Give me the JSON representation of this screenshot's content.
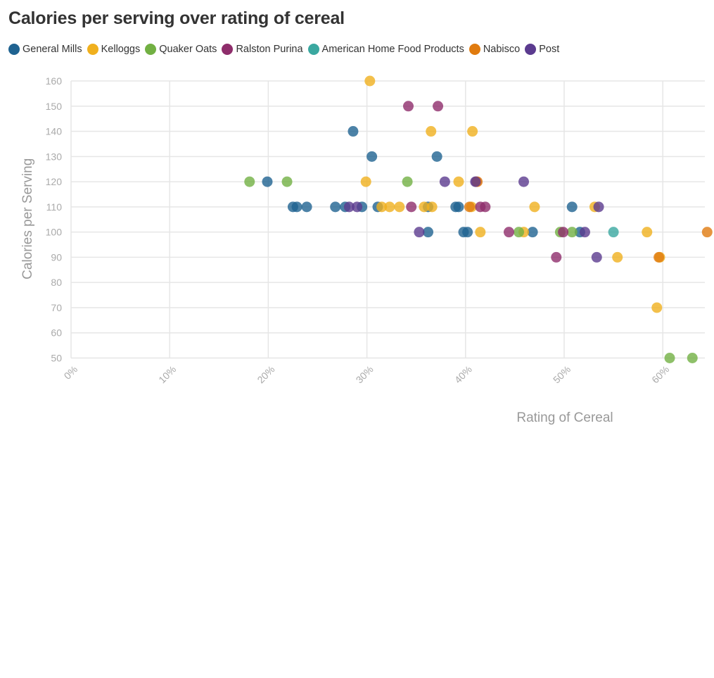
{
  "chart_data": {
    "type": "scatter",
    "title": "Calories per serving over rating of cereal",
    "xlabel": "Rating of Cereal",
    "ylabel": "Calories per Serving",
    "xlim": [
      0,
      0.64
    ],
    "ylim": [
      50,
      160
    ],
    "x_ticks": [
      "0%",
      "10%",
      "20%",
      "30%",
      "40%",
      "50%",
      "60%"
    ],
    "y_ticks": [
      "50",
      "60",
      "70",
      "80",
      "90",
      "100",
      "110",
      "120",
      "130",
      "140",
      "150",
      "160"
    ],
    "grid": true,
    "legend_position": "top-left",
    "series": [
      {
        "name": "General Mills",
        "color": "#1f6391",
        "points": [
          {
            "x": 0.199,
            "y": 120
          },
          {
            "x": 0.225,
            "y": 110
          },
          {
            "x": 0.229,
            "y": 110
          },
          {
            "x": 0.239,
            "y": 110
          },
          {
            "x": 0.268,
            "y": 110
          },
          {
            "x": 0.278,
            "y": 110
          },
          {
            "x": 0.286,
            "y": 140
          },
          {
            "x": 0.295,
            "y": 110
          },
          {
            "x": 0.305,
            "y": 130
          },
          {
            "x": 0.311,
            "y": 110
          },
          {
            "x": 0.362,
            "y": 100
          },
          {
            "x": 0.362,
            "y": 110
          },
          {
            "x": 0.371,
            "y": 130
          },
          {
            "x": 0.39,
            "y": 110
          },
          {
            "x": 0.393,
            "y": 110
          },
          {
            "x": 0.398,
            "y": 100
          },
          {
            "x": 0.402,
            "y": 100
          },
          {
            "x": 0.468,
            "y": 100
          },
          {
            "x": 0.508,
            "y": 110
          },
          {
            "x": 0.516,
            "y": 100
          }
        ]
      },
      {
        "name": "Kelloggs",
        "color": "#f0b01e",
        "points": [
          {
            "x": 0.299,
            "y": 120
          },
          {
            "x": 0.303,
            "y": 160
          },
          {
            "x": 0.315,
            "y": 110
          },
          {
            "x": 0.323,
            "y": 110
          },
          {
            "x": 0.333,
            "y": 110
          },
          {
            "x": 0.358,
            "y": 110
          },
          {
            "x": 0.365,
            "y": 140
          },
          {
            "x": 0.366,
            "y": 110
          },
          {
            "x": 0.393,
            "y": 120
          },
          {
            "x": 0.406,
            "y": 110
          },
          {
            "x": 0.407,
            "y": 140
          },
          {
            "x": 0.415,
            "y": 100
          },
          {
            "x": 0.459,
            "y": 100
          },
          {
            "x": 0.47,
            "y": 110
          },
          {
            "x": 0.531,
            "y": 110
          },
          {
            "x": 0.554,
            "y": 90
          },
          {
            "x": 0.584,
            "y": 100
          },
          {
            "x": 0.594,
            "y": 70
          },
          {
            "x": 0.597,
            "y": 90
          }
        ]
      },
      {
        "name": "Quaker Oats",
        "color": "#72b043",
        "points": [
          {
            "x": 0.181,
            "y": 120
          },
          {
            "x": 0.219,
            "y": 120
          },
          {
            "x": 0.341,
            "y": 120
          },
          {
            "x": 0.454,
            "y": 100
          },
          {
            "x": 0.496,
            "y": 100
          },
          {
            "x": 0.508,
            "y": 100
          },
          {
            "x": 0.607,
            "y": 50
          },
          {
            "x": 0.63,
            "y": 50
          }
        ]
      },
      {
        "name": "Ralston Purina",
        "color": "#8e2d6b",
        "points": [
          {
            "x": 0.342,
            "y": 150
          },
          {
            "x": 0.345,
            "y": 110
          },
          {
            "x": 0.372,
            "y": 150
          },
          {
            "x": 0.411,
            "y": 120
          },
          {
            "x": 0.415,
            "y": 110
          },
          {
            "x": 0.42,
            "y": 110
          },
          {
            "x": 0.444,
            "y": 100
          },
          {
            "x": 0.492,
            "y": 90
          },
          {
            "x": 0.499,
            "y": 100
          }
        ]
      },
      {
        "name": "American Home Food Products",
        "color": "#3aa8a0",
        "points": [
          {
            "x": 0.55,
            "y": 100
          }
        ]
      },
      {
        "name": "Nabisco",
        "color": "#e07b0f",
        "points": [
          {
            "x": 0.412,
            "y": 120
          },
          {
            "x": 0.404,
            "y": 110
          },
          {
            "x": 0.596,
            "y": 90
          },
          {
            "x": 0.645,
            "y": 100
          }
        ]
      },
      {
        "name": "Post",
        "color": "#5b3b8f",
        "points": [
          {
            "x": 0.282,
            "y": 110
          },
          {
            "x": 0.29,
            "y": 110
          },
          {
            "x": 0.353,
            "y": 100
          },
          {
            "x": 0.379,
            "y": 120
          },
          {
            "x": 0.41,
            "y": 120
          },
          {
            "x": 0.459,
            "y": 120
          },
          {
            "x": 0.521,
            "y": 100
          },
          {
            "x": 0.533,
            "y": 90
          },
          {
            "x": 0.535,
            "y": 110
          }
        ]
      }
    ]
  }
}
